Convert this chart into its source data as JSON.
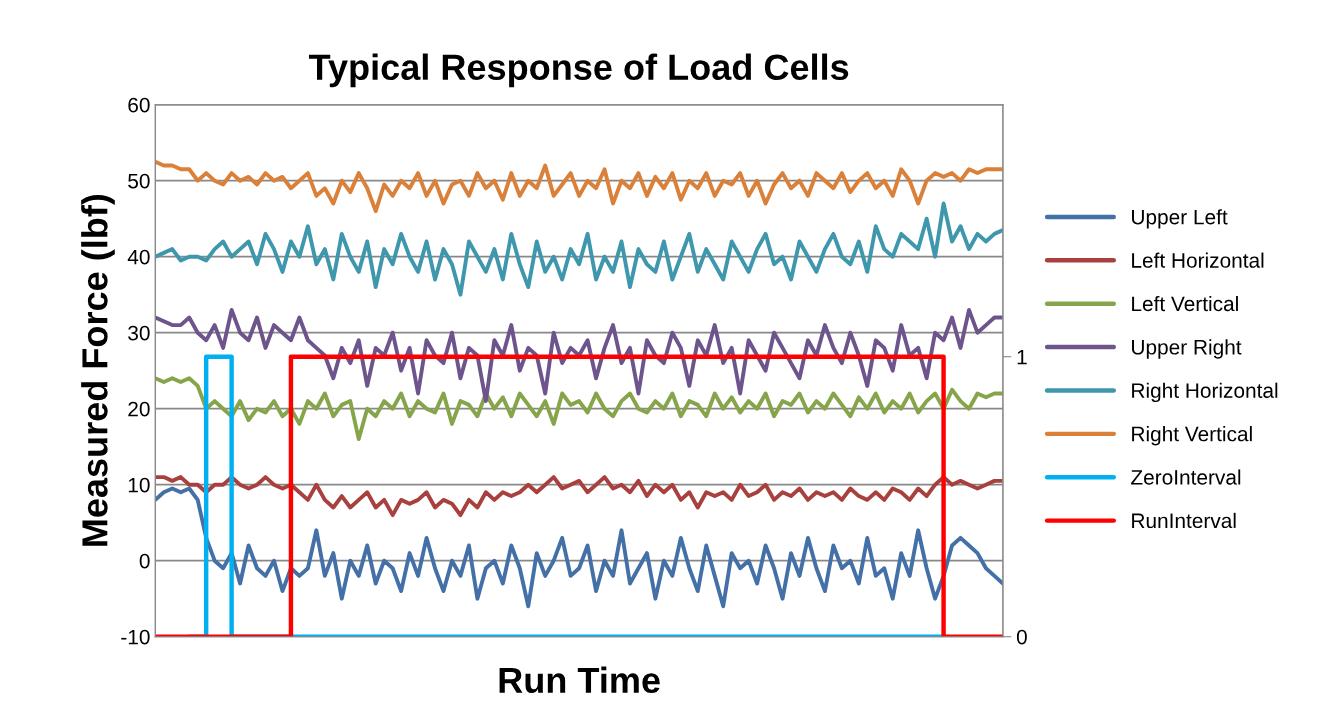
{
  "chart_data": {
    "type": "line",
    "title": "Typical Response of Load Cells",
    "xlabel": "Run Time",
    "ylabel": "Measured Force (lbf)",
    "categories": [
      null,
      null,
      null,
      null,
      null,
      null,
      null,
      null,
      null,
      null,
      null,
      null,
      null,
      null,
      null,
      null,
      null,
      null,
      null,
      null,
      null,
      null,
      null,
      null,
      null,
      null,
      null,
      null,
      null,
      null,
      null,
      null,
      null,
      null,
      null,
      null,
      null,
      null,
      null,
      null,
      null,
      null,
      null,
      null,
      null,
      null,
      null,
      null,
      null,
      null,
      null,
      null,
      null,
      null,
      null,
      null,
      null,
      null,
      null,
      null,
      null,
      null,
      null,
      null,
      null,
      null,
      null,
      null,
      null,
      null,
      null,
      null,
      null,
      null,
      null,
      null,
      null,
      null,
      null,
      null,
      null,
      null,
      null,
      null,
      null,
      null,
      null,
      null,
      null,
      null,
      null,
      null,
      null,
      null,
      null,
      null,
      null,
      null,
      null,
      null,
      null
    ],
    "ylim": [
      -10,
      60
    ],
    "yticks": [
      -10,
      0,
      10,
      20,
      30,
      40,
      50,
      60
    ],
    "y2lim": [
      0,
      1.9
    ],
    "y2ticks": [
      0,
      1
    ],
    "grid": "y",
    "legend": "right",
    "marker": "none",
    "line_style": "solid",
    "series": [
      {
        "name": "Upper Left",
        "color": "#4470a8",
        "values": [
          8,
          9,
          9.5,
          9,
          9.5,
          8,
          3,
          0,
          -1,
          1,
          -3,
          2,
          -1,
          -2,
          0,
          -4,
          -1,
          -2,
          -1,
          4,
          -2,
          1,
          -5,
          0,
          -2,
          2,
          -3,
          0,
          -1,
          -4,
          1,
          -2,
          3,
          -1,
          -4,
          0,
          -2,
          2,
          -5,
          -1,
          0,
          -3,
          2,
          -1,
          -6,
          1,
          -2,
          0,
          3,
          -2,
          -1,
          2,
          -4,
          0,
          -2,
          4,
          -3,
          -1,
          1,
          -5,
          0,
          -2,
          3,
          -1,
          -4,
          2,
          -2,
          -6,
          1,
          -1,
          0,
          -3,
          2,
          -1,
          -5,
          1,
          -2,
          3,
          -1,
          -4,
          2,
          -1,
          0,
          -3,
          3,
          -2,
          -1,
          -5,
          1,
          -2,
          4,
          -1,
          -5,
          -2,
          2,
          3,
          2,
          1,
          -1,
          -2,
          -3
        ]
      },
      {
        "name": "Left Horizontal",
        "color": "#a8413e",
        "values": [
          11,
          11,
          10.5,
          11,
          10,
          10,
          9,
          10,
          10,
          11,
          10,
          9.5,
          10,
          11,
          10,
          9.5,
          10,
          9,
          8,
          10,
          8,
          7,
          8.5,
          7,
          8,
          9,
          7,
          8,
          6,
          8,
          7.5,
          8,
          9,
          7,
          8,
          7.5,
          6,
          8,
          7,
          9,
          8,
          9,
          8.5,
          9,
          10,
          9,
          10,
          11,
          9.5,
          10,
          10.5,
          9,
          10,
          11,
          9.5,
          10,
          9,
          10.5,
          8.5,
          10,
          9,
          10,
          8,
          9,
          7,
          9,
          8.5,
          9,
          8,
          10,
          8.5,
          9,
          10,
          8,
          9,
          8.5,
          9.5,
          8,
          9,
          8.5,
          9,
          8,
          9.5,
          8.5,
          8,
          9,
          8,
          9.5,
          9,
          8,
          9.5,
          8.5,
          10,
          11,
          10,
          10.5,
          10,
          9.5,
          10,
          10.5,
          10.5
        ]
      },
      {
        "name": "Left Vertical",
        "color": "#86a54a",
        "values": [
          24,
          23.5,
          24,
          23.5,
          24,
          23,
          20,
          21,
          20,
          19,
          21,
          18.5,
          20,
          19.5,
          21,
          19,
          20,
          18,
          21,
          20,
          22,
          19,
          20.5,
          21,
          16,
          20,
          19,
          21,
          20,
          22,
          19,
          21,
          20,
          19.5,
          22,
          18,
          21,
          20.5,
          19,
          22,
          20,
          21.5,
          19,
          22,
          20.5,
          19,
          21,
          18,
          22,
          20.5,
          21,
          19.5,
          22,
          20,
          19,
          21,
          22,
          20,
          19.5,
          21,
          20,
          22,
          19,
          21,
          20.5,
          19,
          22,
          20,
          21.5,
          19.5,
          21,
          20,
          22,
          19,
          21,
          20.5,
          22,
          19.5,
          21,
          20,
          22,
          20.5,
          19,
          21.5,
          20,
          22,
          19.5,
          21,
          20,
          22,
          19.5,
          21,
          22,
          20,
          22.5,
          21,
          20,
          22,
          21.5,
          22,
          22
        ]
      },
      {
        "name": "Upper Right",
        "color": "#6e548c",
        "values": [
          32,
          31.5,
          31,
          31,
          32,
          30,
          29,
          31,
          28,
          33,
          30,
          29,
          32,
          28,
          31,
          30,
          29,
          32,
          29,
          28,
          27,
          24,
          28,
          26,
          29,
          23,
          28,
          27,
          30,
          25,
          28,
          22,
          29,
          27,
          26,
          30,
          24,
          28,
          27,
          21,
          29,
          27,
          31,
          25,
          28,
          27,
          22,
          30,
          26,
          28,
          27,
          29,
          24,
          28,
          31,
          26,
          28,
          22,
          29,
          27,
          26,
          30,
          28,
          23,
          29,
          27,
          31,
          26,
          28,
          22,
          29,
          27,
          25,
          30,
          28,
          26,
          24,
          29,
          27,
          31,
          28,
          26,
          30,
          27,
          23,
          29,
          28,
          25,
          31,
          27,
          28,
          24,
          30,
          29,
          32,
          28,
          33,
          30,
          31,
          32,
          32
        ]
      },
      {
        "name": "Right Horizontal",
        "color": "#3f97ae",
        "values": [
          40,
          40.5,
          41,
          39.5,
          40,
          40,
          39.5,
          41,
          42,
          40,
          41,
          42,
          39,
          43,
          41,
          38,
          42,
          40,
          44,
          39,
          41,
          37,
          43,
          40,
          38,
          42,
          36,
          41,
          39,
          43,
          40,
          38,
          42,
          37,
          41,
          39,
          35,
          42,
          40,
          38,
          41,
          37,
          43,
          39,
          36,
          42,
          38,
          40,
          37,
          41,
          39,
          43,
          37,
          40,
          38,
          42,
          36,
          41,
          39,
          38,
          42,
          37,
          40,
          43,
          38,
          41,
          39,
          37,
          42,
          40,
          38,
          41,
          43,
          39,
          40,
          37,
          42,
          40,
          38,
          41,
          43,
          40,
          39,
          42,
          38,
          44,
          41,
          40,
          43,
          42,
          41,
          45,
          40,
          47,
          42,
          44,
          41,
          43,
          42,
          43,
          43.5
        ]
      },
      {
        "name": "Right Vertical",
        "color": "#da8038",
        "values": [
          52.5,
          52,
          52,
          51.5,
          51.5,
          50,
          51,
          50,
          49.5,
          51,
          50,
          50.5,
          49.5,
          51,
          50,
          50.5,
          49,
          50,
          51,
          48,
          49,
          47,
          50,
          48.5,
          51,
          49,
          46,
          49.5,
          48,
          50,
          49,
          51,
          48,
          50,
          47,
          49.5,
          50,
          48,
          51,
          49,
          50,
          47.5,
          51,
          48,
          50,
          49,
          52,
          48,
          49.5,
          51,
          48,
          50,
          49,
          51.5,
          47,
          50,
          49,
          51,
          48,
          50.5,
          49,
          51,
          47.5,
          50,
          49,
          51,
          48,
          50,
          49.5,
          51,
          48,
          50,
          47,
          49.5,
          51,
          49,
          50,
          48,
          51,
          50,
          49,
          51,
          48.5,
          50,
          51,
          49,
          50,
          48,
          51.5,
          50,
          47,
          50,
          51,
          50.5,
          51,
          50,
          51.5,
          51,
          51.5,
          51.5,
          51.5
        ]
      },
      {
        "name": "ZeroInterval",
        "color": "#00b0f0",
        "type": "step",
        "axis": "y2",
        "values": [
          null,
          null,
          null,
          null,
          0,
          0,
          1,
          1,
          1,
          0,
          0,
          0,
          0,
          0,
          0,
          0,
          0,
          0,
          0,
          0,
          0,
          0,
          0,
          0,
          0,
          0,
          0,
          0,
          0,
          0,
          0,
          0,
          0,
          0,
          0,
          0,
          0,
          0,
          0,
          0,
          0,
          0,
          0,
          0,
          0,
          0,
          0,
          0,
          0,
          0,
          0,
          0,
          0,
          0,
          0,
          0,
          0,
          0,
          0,
          0,
          0,
          0,
          0,
          0,
          0,
          0,
          0,
          0,
          0,
          0,
          0,
          0,
          0,
          0,
          0,
          0,
          0,
          0,
          0,
          0,
          0,
          0,
          0,
          0,
          0,
          0,
          0,
          0,
          0,
          0,
          0,
          0,
          0,
          0,
          null,
          null,
          null,
          null,
          null,
          null,
          null
        ]
      },
      {
        "name": "RunInterval",
        "color": "#ff0000",
        "type": "step",
        "axis": "y2",
        "values": [
          0,
          0,
          0,
          0,
          0,
          0,
          0,
          0,
          0,
          0,
          0,
          0,
          0,
          0,
          0,
          0,
          1,
          1,
          1,
          1,
          1,
          1,
          1,
          1,
          1,
          1,
          1,
          1,
          1,
          1,
          1,
          1,
          1,
          1,
          1,
          1,
          1,
          1,
          1,
          1,
          1,
          1,
          1,
          1,
          1,
          1,
          1,
          1,
          1,
          1,
          1,
          1,
          1,
          1,
          1,
          1,
          1,
          1,
          1,
          1,
          1,
          1,
          1,
          1,
          1,
          1,
          1,
          1,
          1,
          1,
          1,
          1,
          1,
          1,
          1,
          1,
          1,
          1,
          1,
          1,
          1,
          1,
          1,
          1,
          1,
          1,
          1,
          1,
          1,
          1,
          1,
          1,
          1,
          0,
          0,
          0,
          0,
          0,
          0,
          0,
          0
        ]
      }
    ]
  }
}
